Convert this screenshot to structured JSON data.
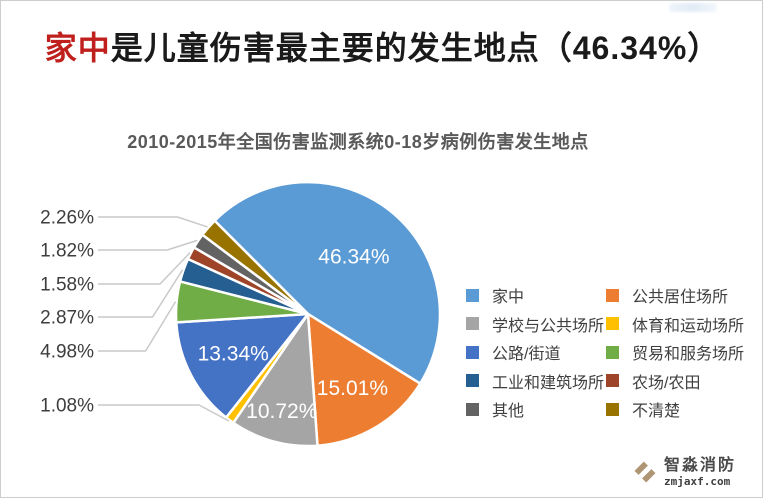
{
  "page": {
    "title": {
      "highlight": "家中",
      "rest": "是儿童伤害最主要的发生地点（46.34%）"
    },
    "watermark": {
      "name": "智淼消防",
      "site": "zmjaxf.com"
    }
  },
  "chart_data": {
    "type": "pie",
    "title": "2010-2015年全国伤害监测系统0-18岁病例伤害发生地点",
    "order": "clockwise-from-start-angle",
    "start_angle_deg": -45,
    "legend_position": "right",
    "legend_columns": 2,
    "series": [
      {
        "name": "家中",
        "value": 46.34,
        "color": "#5B9BD5"
      },
      {
        "name": "公共居住场所",
        "value": 15.01,
        "color": "#ED7D31"
      },
      {
        "name": "学校与公共场所",
        "value": 10.72,
        "color": "#A5A5A5"
      },
      {
        "name": "体育和运动场所",
        "value": 1.08,
        "color": "#FFC000"
      },
      {
        "name": "公路/街道",
        "value": 13.34,
        "color": "#4472C4"
      },
      {
        "name": "贸易和服务场所",
        "value": 4.98,
        "color": "#70AD47"
      },
      {
        "name": "工业和建筑场所",
        "value": 2.87,
        "color": "#255E91"
      },
      {
        "name": "农场/农田",
        "value": 1.58,
        "color": "#9E4429"
      },
      {
        "name": "其他",
        "value": 1.82,
        "color": "#636363"
      },
      {
        "name": "不清楚",
        "value": 2.26,
        "color": "#997300"
      }
    ],
    "inner_labels": [
      "46.34%",
      "15.01%",
      "10.72%",
      "13.34%"
    ],
    "outer_labels": [
      "2.26%",
      "1.82%",
      "1.58%",
      "2.87%",
      "4.98%",
      "1.08%"
    ]
  }
}
